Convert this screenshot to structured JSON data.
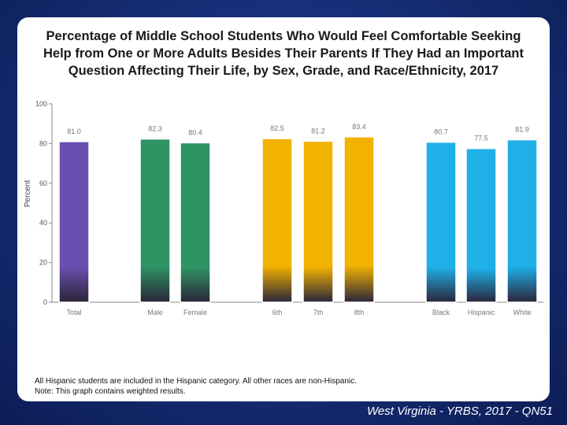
{
  "title": "Percentage of Middle School Students Who Would Feel Comfortable Seeking Help from One or More Adults Besides Their Parents If They Had an Important Question Affecting Their Life, by Sex, Grade, and Race/Ethnicity, 2017",
  "chart_data": {
    "type": "bar",
    "title": "Percentage of Middle School Students Who Would Feel Comfortable Seeking Help from One or More Adults Besides Their Parents If They Had an Important Question Affecting Their Life, by Sex, Grade, and Race/Ethnicity, 2017",
    "xlabel": "",
    "ylabel": "Percent",
    "ylim": [
      0,
      100
    ],
    "yticks": [
      0,
      20,
      40,
      60,
      80,
      100
    ],
    "categories": [
      "Total",
      "Male",
      "Female",
      "6th",
      "7th",
      "8th",
      "Black",
      "Hispanic",
      "White"
    ],
    "values": [
      81.0,
      82.3,
      80.4,
      82.5,
      81.2,
      83.4,
      80.7,
      77.5,
      81.9
    ],
    "value_labels": [
      "81.0",
      "82.3",
      "80.4",
      "82.5",
      "81.2",
      "83.4",
      "80.7",
      "77.5",
      "81.9"
    ],
    "colors": [
      "#6a4fb0",
      "#2f9464",
      "#2f9464",
      "#f2b200",
      "#f2b200",
      "#f2b200",
      "#1fb0e8",
      "#1fb0e8",
      "#1fb0e8"
    ]
  },
  "footnotes": [
    "All Hispanic students are included in the Hispanic category.  All other races are non-Hispanic.",
    "Note: This graph contains weighted results."
  ],
  "source": "West Virginia - YRBS, 2017 - QN51"
}
